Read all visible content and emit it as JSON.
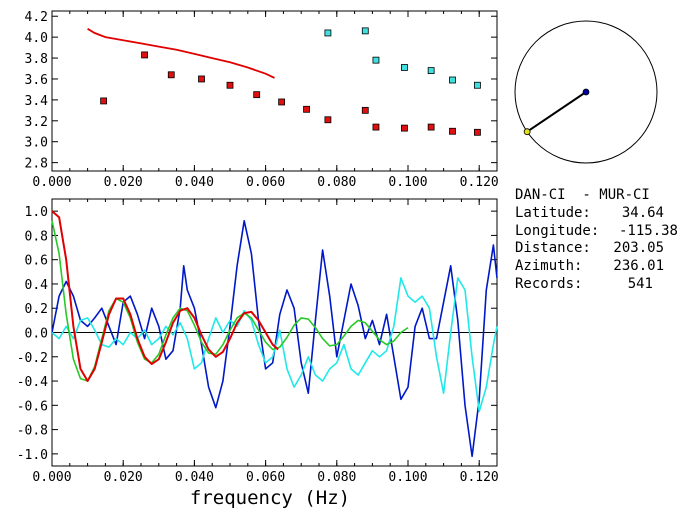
{
  "colors": {
    "red": "#e00000",
    "blue": "#0018c8",
    "cyan": "#20e8e8",
    "green": "#28c828",
    "square_red": "#e01010",
    "square_cyan": "#40e0e0",
    "compass_line": "#000000",
    "compass_center": "#0000a0",
    "compass_tip": "#e0e020"
  },
  "info": {
    "title": "DAN-CI  - MUR-CI",
    "latitude_label": "Latitude:",
    "latitude_value": "34.64",
    "longitude_label": "Longitude:",
    "longitude_value": "-115.38",
    "distance_label": "Distance:",
    "distance_value": "203.05",
    "azimuth_label": "Azimuth:",
    "azimuth_value": "236.01",
    "records_label": "Records:",
    "records_value": "541"
  },
  "compass": {
    "azimuth_deg": 236.01
  },
  "chart_data": [
    {
      "type": "scatter",
      "xlim": [
        0,
        0.125
      ],
      "ylim": [
        2.72,
        4.25
      ],
      "x_ticks": [
        "0.000",
        "0.020",
        "0.040",
        "0.060",
        "0.080",
        "0.100",
        "0.120"
      ],
      "y_ticks": [
        "2.8",
        "3.0",
        "3.2",
        "3.4",
        "3.6",
        "3.8",
        "4.0",
        "4.2"
      ],
      "line": {
        "x": [
          0.01,
          0.012,
          0.015,
          0.02,
          0.025,
          0.03,
          0.035,
          0.04,
          0.045,
          0.05,
          0.055,
          0.06,
          0.0625
        ],
        "y": [
          4.08,
          4.04,
          4.0,
          3.97,
          3.94,
          3.91,
          3.88,
          3.84,
          3.8,
          3.76,
          3.71,
          3.65,
          3.61
        ]
      },
      "series": [
        {
          "x": [
            0.0145,
            0.026,
            0.0335,
            0.042,
            0.05,
            0.0575,
            0.0645,
            0.0715,
            0.0775,
            0.088,
            0.091,
            0.099,
            0.1065,
            0.1125,
            0.1195
          ],
          "y": [
            3.39,
            3.83,
            3.64,
            3.6,
            3.54,
            3.45,
            3.38,
            3.31,
            3.21,
            3.3,
            3.14,
            3.13,
            3.14,
            3.1,
            3.09
          ]
        },
        {
          "x": [
            0.0775,
            0.088,
            0.091,
            0.099,
            0.1065,
            0.1125,
            0.1195
          ],
          "y": [
            4.04,
            4.06,
            3.78,
            3.71,
            3.68,
            3.59,
            3.54
          ]
        }
      ]
    },
    {
      "type": "line",
      "xlabel": "frequency (Hz)",
      "xlim": [
        0,
        0.125
      ],
      "ylim": [
        -1.1,
        1.1
      ],
      "x_ticks": [
        "0.000",
        "0.020",
        "0.040",
        "0.060",
        "0.080",
        "0.100",
        "0.120"
      ],
      "y_ticks": [
        "1.0",
        "0.8",
        "0.6",
        "0.4",
        "0.2",
        "0.0",
        "-0.2",
        "-0.4",
        "-0.6",
        "-0.8",
        "-1.0"
      ],
      "series": [
        {
          "color": "#0018c8",
          "x": [
            0.0,
            0.002,
            0.004,
            0.006,
            0.008,
            0.01,
            0.012,
            0.014,
            0.016,
            0.018,
            0.02,
            0.022,
            0.024,
            0.026,
            0.028,
            0.03,
            0.032,
            0.034,
            0.036,
            0.037,
            0.038,
            0.04,
            0.042,
            0.044,
            0.046,
            0.048,
            0.05,
            0.052,
            0.054,
            0.056,
            0.058,
            0.06,
            0.062,
            0.064,
            0.066,
            0.068,
            0.07,
            0.072,
            0.074,
            0.076,
            0.078,
            0.08,
            0.082,
            0.084,
            0.086,
            0.088,
            0.09,
            0.092,
            0.094,
            0.096,
            0.098,
            0.1,
            0.102,
            0.104,
            0.106,
            0.108,
            0.11,
            0.112,
            0.114,
            0.116,
            0.118,
            0.12,
            0.122,
            0.124,
            0.125
          ],
          "y": [
            0.0,
            0.3,
            0.42,
            0.3,
            0.1,
            0.05,
            0.12,
            0.2,
            0.05,
            -0.1,
            0.25,
            0.3,
            0.15,
            -0.05,
            0.2,
            0.05,
            -0.22,
            -0.15,
            0.2,
            0.55,
            0.35,
            0.2,
            -0.1,
            -0.45,
            -0.62,
            -0.4,
            0.05,
            0.55,
            0.92,
            0.65,
            0.1,
            -0.3,
            -0.25,
            0.15,
            0.35,
            0.2,
            -0.25,
            -0.5,
            0.1,
            0.68,
            0.3,
            -0.2,
            0.1,
            0.4,
            0.22,
            -0.05,
            0.1,
            -0.1,
            0.15,
            -0.2,
            -0.55,
            -0.45,
            0.05,
            0.2,
            -0.05,
            -0.05,
            0.25,
            0.55,
            0.1,
            -0.6,
            -1.02,
            -0.55,
            0.35,
            0.72,
            0.45
          ]
        },
        {
          "color": "#20e8e8",
          "x": [
            0.0,
            0.002,
            0.004,
            0.006,
            0.008,
            0.01,
            0.012,
            0.014,
            0.016,
            0.018,
            0.02,
            0.022,
            0.024,
            0.026,
            0.028,
            0.03,
            0.032,
            0.034,
            0.036,
            0.038,
            0.04,
            0.042,
            0.044,
            0.046,
            0.048,
            0.05,
            0.052,
            0.054,
            0.056,
            0.058,
            0.06,
            0.062,
            0.064,
            0.066,
            0.068,
            0.07,
            0.072,
            0.074,
            0.076,
            0.078,
            0.08,
            0.082,
            0.084,
            0.086,
            0.088,
            0.09,
            0.092,
            0.094,
            0.096,
            0.098,
            0.1,
            0.102,
            0.104,
            0.106,
            0.108,
            0.11,
            0.112,
            0.114,
            0.116,
            0.118,
            0.12,
            0.122,
            0.124,
            0.125
          ],
          "y": [
            0.0,
            -0.05,
            0.05,
            -0.05,
            0.1,
            0.12,
            0.02,
            -0.1,
            -0.12,
            -0.05,
            -0.1,
            0.0,
            -0.05,
            0.02,
            -0.1,
            -0.05,
            0.05,
            -0.02,
            0.08,
            -0.05,
            -0.3,
            -0.25,
            -0.05,
            0.12,
            0.0,
            0.1,
            0.05,
            0.18,
            0.1,
            -0.1,
            -0.25,
            -0.2,
            0.02,
            -0.3,
            -0.45,
            -0.35,
            -0.2,
            -0.35,
            -0.4,
            -0.3,
            -0.25,
            -0.1,
            -0.3,
            -0.35,
            -0.25,
            -0.15,
            -0.2,
            -0.15,
            0.05,
            0.45,
            0.3,
            0.25,
            0.3,
            0.2,
            -0.2,
            -0.5,
            0.0,
            0.45,
            0.35,
            -0.2,
            -0.65,
            -0.45,
            -0.1,
            0.05
          ]
        },
        {
          "color": "#28c828",
          "x": [
            0.0,
            0.002,
            0.004,
            0.006,
            0.008,
            0.01,
            0.012,
            0.014,
            0.016,
            0.018,
            0.02,
            0.022,
            0.024,
            0.026,
            0.028,
            0.03,
            0.032,
            0.034,
            0.036,
            0.038,
            0.04,
            0.042,
            0.044,
            0.046,
            0.048,
            0.05,
            0.052,
            0.054,
            0.056,
            0.058,
            0.06,
            0.062,
            0.064,
            0.066,
            0.068,
            0.07,
            0.072,
            0.074,
            0.076,
            0.078,
            0.08,
            0.082,
            0.084,
            0.086,
            0.088,
            0.09,
            0.092,
            0.094,
            0.096,
            0.098,
            0.1
          ],
          "y": [
            0.92,
            0.65,
            0.15,
            -0.22,
            -0.38,
            -0.4,
            -0.28,
            -0.05,
            0.18,
            0.28,
            0.25,
            0.12,
            -0.08,
            -0.22,
            -0.25,
            -0.18,
            -0.02,
            0.12,
            0.2,
            0.18,
            0.06,
            -0.08,
            -0.17,
            -0.18,
            -0.1,
            0.02,
            0.12,
            0.16,
            0.12,
            0.02,
            -0.08,
            -0.14,
            -0.12,
            -0.04,
            0.06,
            0.12,
            0.11,
            0.04,
            -0.05,
            -0.11,
            -0.1,
            -0.03,
            0.05,
            0.1,
            0.08,
            0.01,
            -0.06,
            -0.1,
            -0.07,
            0.0,
            0.04
          ]
        },
        {
          "color": "#e00000",
          "x": [
            0.0,
            0.002,
            0.004,
            0.006,
            0.008,
            0.01,
            0.012,
            0.014,
            0.016,
            0.018,
            0.02,
            0.022,
            0.024,
            0.026,
            0.028,
            0.03,
            0.032,
            0.034,
            0.036,
            0.038,
            0.04,
            0.042,
            0.044,
            0.046,
            0.048,
            0.05,
            0.052,
            0.054,
            0.056,
            0.058,
            0.06,
            0.062,
            0.0635
          ],
          "y": [
            1.0,
            0.95,
            0.6,
            0.05,
            -0.3,
            -0.4,
            -0.3,
            -0.08,
            0.15,
            0.28,
            0.28,
            0.15,
            -0.05,
            -0.2,
            -0.26,
            -0.22,
            -0.08,
            0.08,
            0.18,
            0.2,
            0.12,
            -0.02,
            -0.14,
            -0.2,
            -0.16,
            -0.05,
            0.08,
            0.16,
            0.17,
            0.1,
            0.0,
            -0.1,
            -0.14
          ]
        }
      ]
    }
  ]
}
